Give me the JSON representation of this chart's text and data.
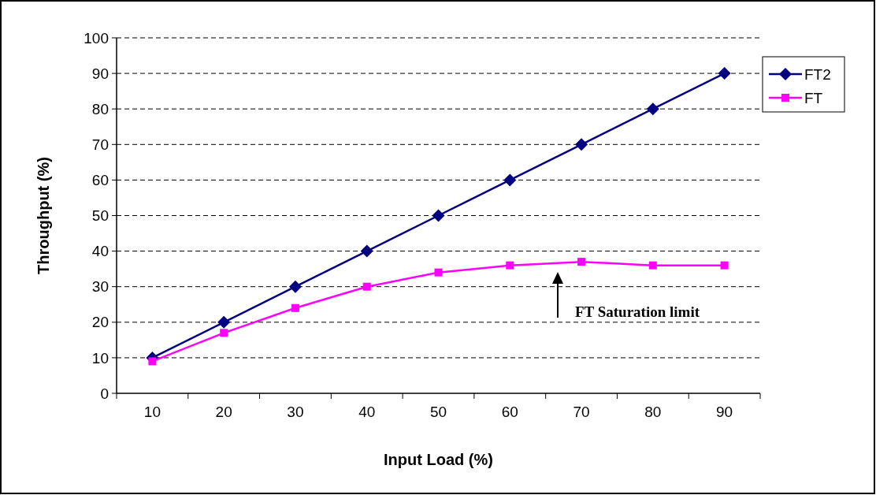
{
  "chart_data": {
    "type": "line",
    "xlabel": "Input Load (%)",
    "ylabel": "Throughput (%)",
    "categories": [
      "10",
      "20",
      "30",
      "40",
      "50",
      "60",
      "70",
      "80",
      "90"
    ],
    "series": [
      {
        "name": "FT2",
        "color": "#000080",
        "marker": "diamond",
        "values": [
          10,
          20,
          30,
          40,
          50,
          60,
          70,
          80,
          90
        ]
      },
      {
        "name": "FT",
        "color": "#ff00ff",
        "marker": "square",
        "values": [
          9,
          17,
          24,
          30,
          34,
          36,
          37,
          36,
          36
        ]
      }
    ],
    "ylim": [
      0,
      100
    ],
    "yticks": [
      0,
      10,
      20,
      30,
      40,
      50,
      60,
      70,
      80,
      90,
      100
    ],
    "grid": "y",
    "legend": "right",
    "annotations": [
      "FT Saturation limit"
    ]
  }
}
